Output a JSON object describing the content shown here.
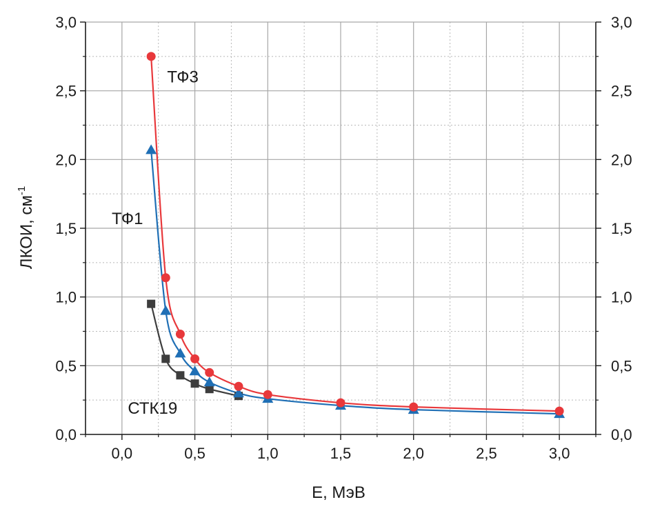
{
  "chart_data": {
    "type": "line",
    "title": "",
    "xlabel": "E, МэВ",
    "ylabel": {
      "main": "ЛКОИ, см",
      "superscript": "-1"
    },
    "xlim": [
      -0.25,
      3.25
    ],
    "ylim": [
      0.0,
      3.0
    ],
    "grid": true,
    "x_ticks": [
      0.0,
      0.5,
      1.0,
      1.5,
      2.0,
      2.5,
      3.0
    ],
    "x_tick_labels": [
      "0,0",
      "0,5",
      "1,0",
      "1,5",
      "2,0",
      "2,5",
      "3,0"
    ],
    "y_ticks": [
      0.0,
      0.5,
      1.0,
      1.5,
      2.0,
      2.5,
      3.0
    ],
    "y_tick_labels": [
      "0,0",
      "0,5",
      "1,0",
      "1,5",
      "2,0",
      "2,5",
      "3,0"
    ],
    "series": [
      {
        "name": "ТФ3",
        "color": "#e8383b",
        "marker": "circle",
        "label_at": [
          0.31,
          2.6
        ],
        "x": [
          0.2,
          0.3,
          0.4,
          0.5,
          0.6,
          0.8,
          1.0,
          1.5,
          2.0,
          3.0
        ],
        "values": [
          2.75,
          1.14,
          0.73,
          0.55,
          0.45,
          0.35,
          0.29,
          0.23,
          0.2,
          0.17
        ]
      },
      {
        "name": "ТФ1",
        "color": "#1f6fb5",
        "marker": "triangle",
        "label_at": [
          -0.07,
          1.57
        ],
        "x": [
          0.2,
          0.3,
          0.4,
          0.5,
          0.6,
          0.8,
          1.0,
          1.5,
          2.0,
          3.0
        ],
        "values": [
          2.07,
          0.9,
          0.59,
          0.46,
          0.38,
          0.3,
          0.26,
          0.21,
          0.18,
          0.15
        ]
      },
      {
        "name": "СТК19",
        "color": "#3d3d3d",
        "marker": "square",
        "label_at": [
          0.04,
          0.19
        ],
        "x": [
          0.2,
          0.3,
          0.4,
          0.5,
          0.6,
          0.8
        ],
        "values": [
          0.95,
          0.55,
          0.43,
          0.37,
          0.33,
          0.28
        ]
      }
    ]
  }
}
